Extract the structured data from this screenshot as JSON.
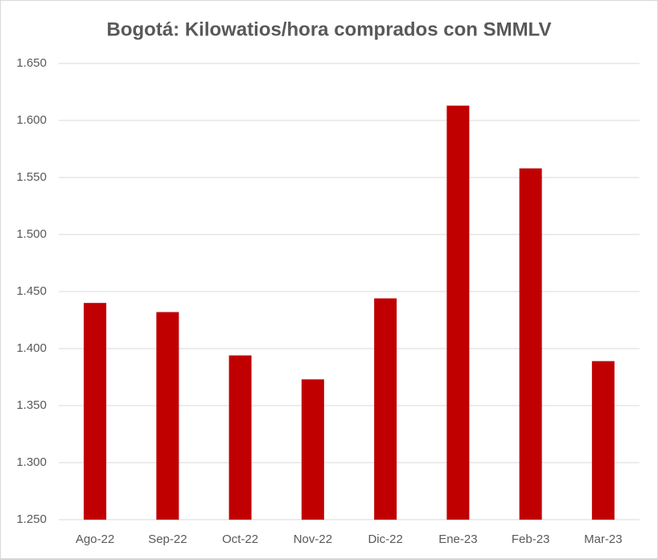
{
  "chart_data": {
    "type": "bar",
    "title": "Bogotá: Kilowatios/hora comprados con SMMLV",
    "categories": [
      "Ago-22",
      "Sep-22",
      "Oct-22",
      "Nov-22",
      "Dic-22",
      "Ene-23",
      "Feb-23",
      "Mar-23"
    ],
    "values": [
      1440,
      1432,
      1394,
      1373,
      1444,
      1613,
      1558,
      1389
    ],
    "color": "#c00000",
    "ylim": [
      1250,
      1650
    ],
    "yticks": [
      {
        "value": 1250,
        "label": "1.250"
      },
      {
        "value": 1300,
        "label": "1.300"
      },
      {
        "value": 1350,
        "label": "1.350"
      },
      {
        "value": 1400,
        "label": "1.400"
      },
      {
        "value": 1450,
        "label": "1.450"
      },
      {
        "value": 1500,
        "label": "1.500"
      },
      {
        "value": 1550,
        "label": "1.550"
      },
      {
        "value": 1600,
        "label": "1.600"
      },
      {
        "value": 1650,
        "label": "1.650"
      }
    ],
    "grid": true
  }
}
